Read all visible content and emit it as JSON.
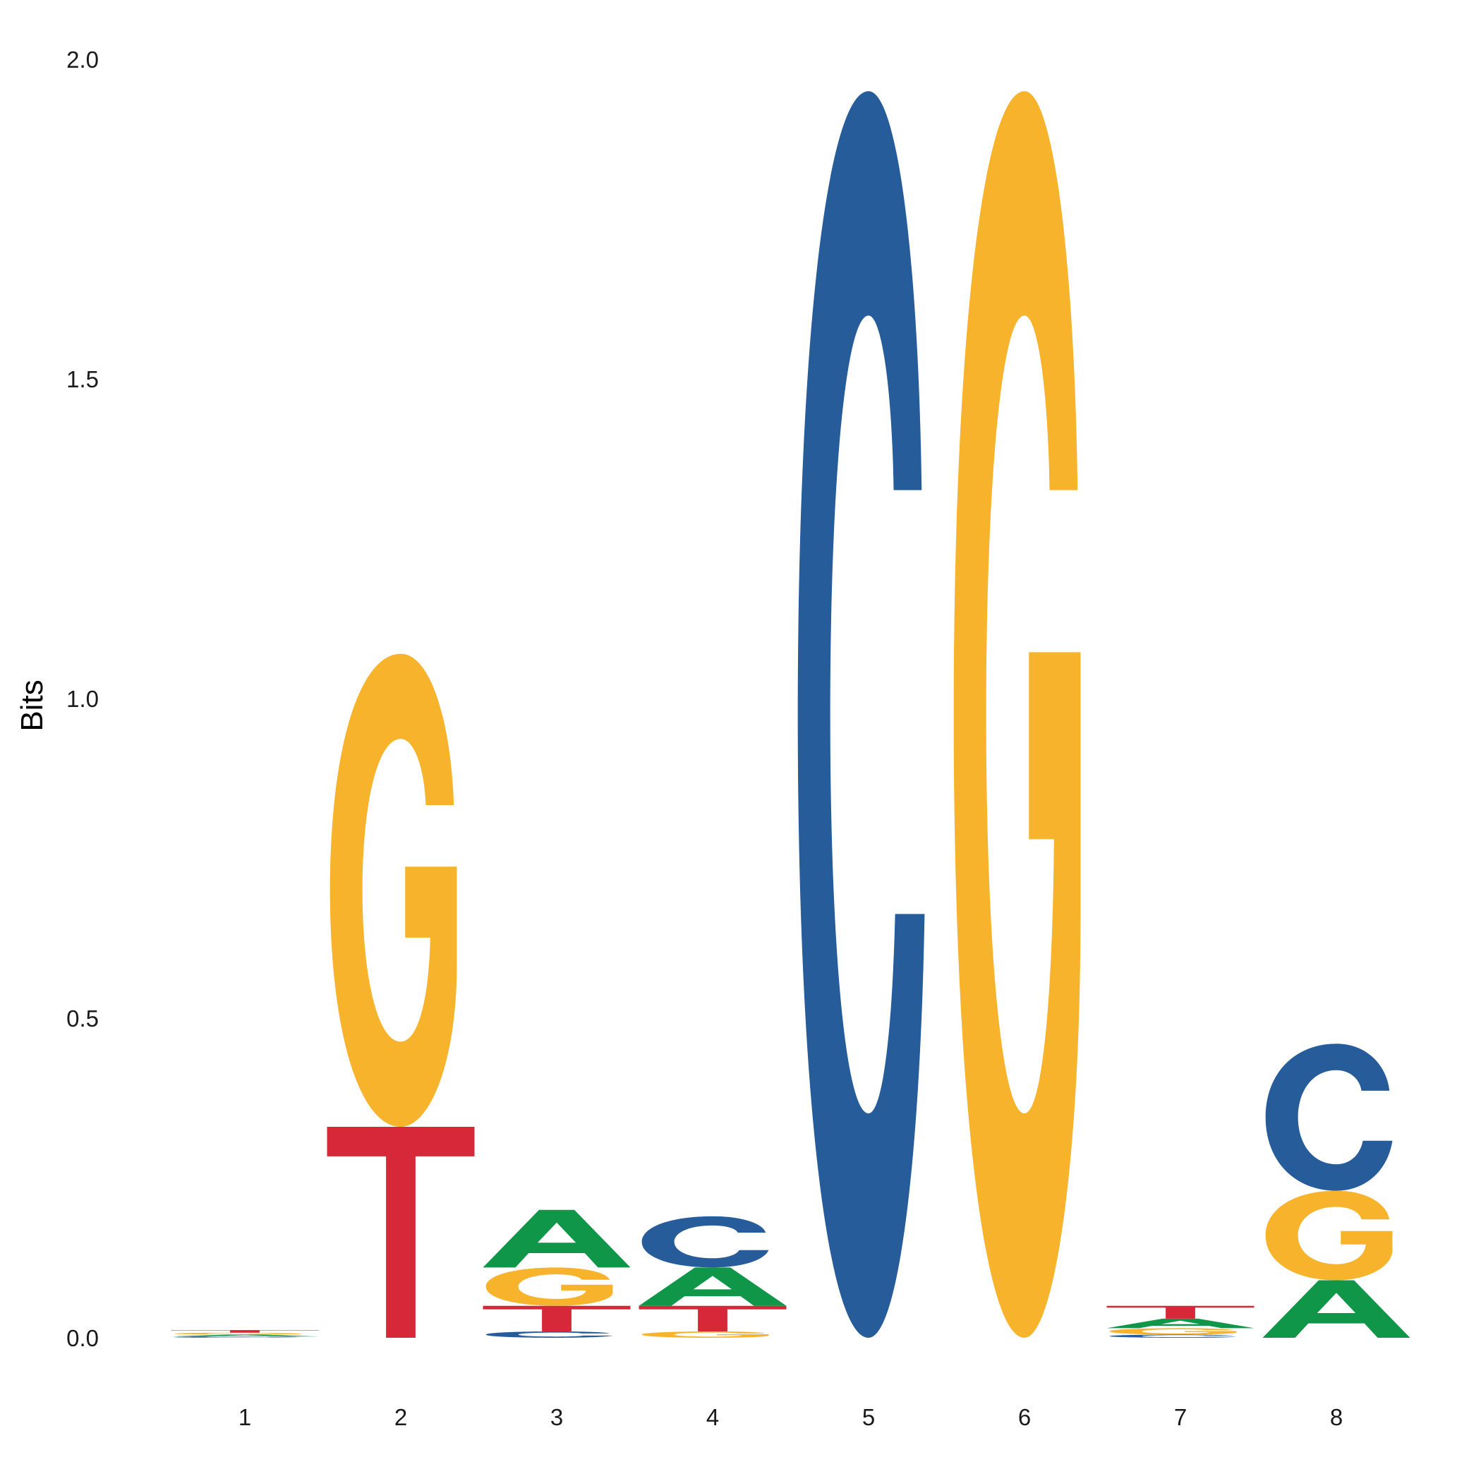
{
  "chart_data": {
    "type": "sequence-logo",
    "ylabel": "Bits",
    "xlabel": "",
    "ylim": [
      0,
      2
    ],
    "y_ticks": [
      "0.0",
      "0.5",
      "1.0",
      "1.5",
      "2.0"
    ],
    "y_tick_values": [
      0,
      0.5,
      1.0,
      1.5,
      2.0
    ],
    "positions": [
      "1",
      "2",
      "3",
      "4",
      "5",
      "6",
      "7",
      "8"
    ],
    "grid": false,
    "colors": {
      "A": "#109648",
      "C": "#255c99",
      "G": "#f7b32b",
      "T": "#d62839"
    },
    "stacks": [
      [
        {
          "letter": "C",
          "bits": 0.002
        },
        {
          "letter": "A",
          "bits": 0.003
        },
        {
          "letter": "G",
          "bits": 0.003
        },
        {
          "letter": "T",
          "bits": 0.004
        }
      ],
      [
        {
          "letter": "T",
          "bits": 0.33
        },
        {
          "letter": "G",
          "bits": 0.74
        }
      ],
      [
        {
          "letter": "C",
          "bits": 0.01
        },
        {
          "letter": "T",
          "bits": 0.04
        },
        {
          "letter": "G",
          "bits": 0.06
        },
        {
          "letter": "A",
          "bits": 0.09
        }
      ],
      [
        {
          "letter": "G",
          "bits": 0.01
        },
        {
          "letter": "T",
          "bits": 0.04
        },
        {
          "letter": "A",
          "bits": 0.06
        },
        {
          "letter": "C",
          "bits": 0.08
        }
      ],
      [
        {
          "letter": "C",
          "bits": 1.95
        }
      ],
      [
        {
          "letter": "G",
          "bits": 1.95
        }
      ],
      [
        {
          "letter": "C",
          "bits": 0.005
        },
        {
          "letter": "G",
          "bits": 0.01
        },
        {
          "letter": "A",
          "bits": 0.015
        },
        {
          "letter": "T",
          "bits": 0.02
        }
      ],
      [
        {
          "letter": "A",
          "bits": 0.09
        },
        {
          "letter": "G",
          "bits": 0.14
        },
        {
          "letter": "C",
          "bits": 0.23
        }
      ]
    ]
  }
}
